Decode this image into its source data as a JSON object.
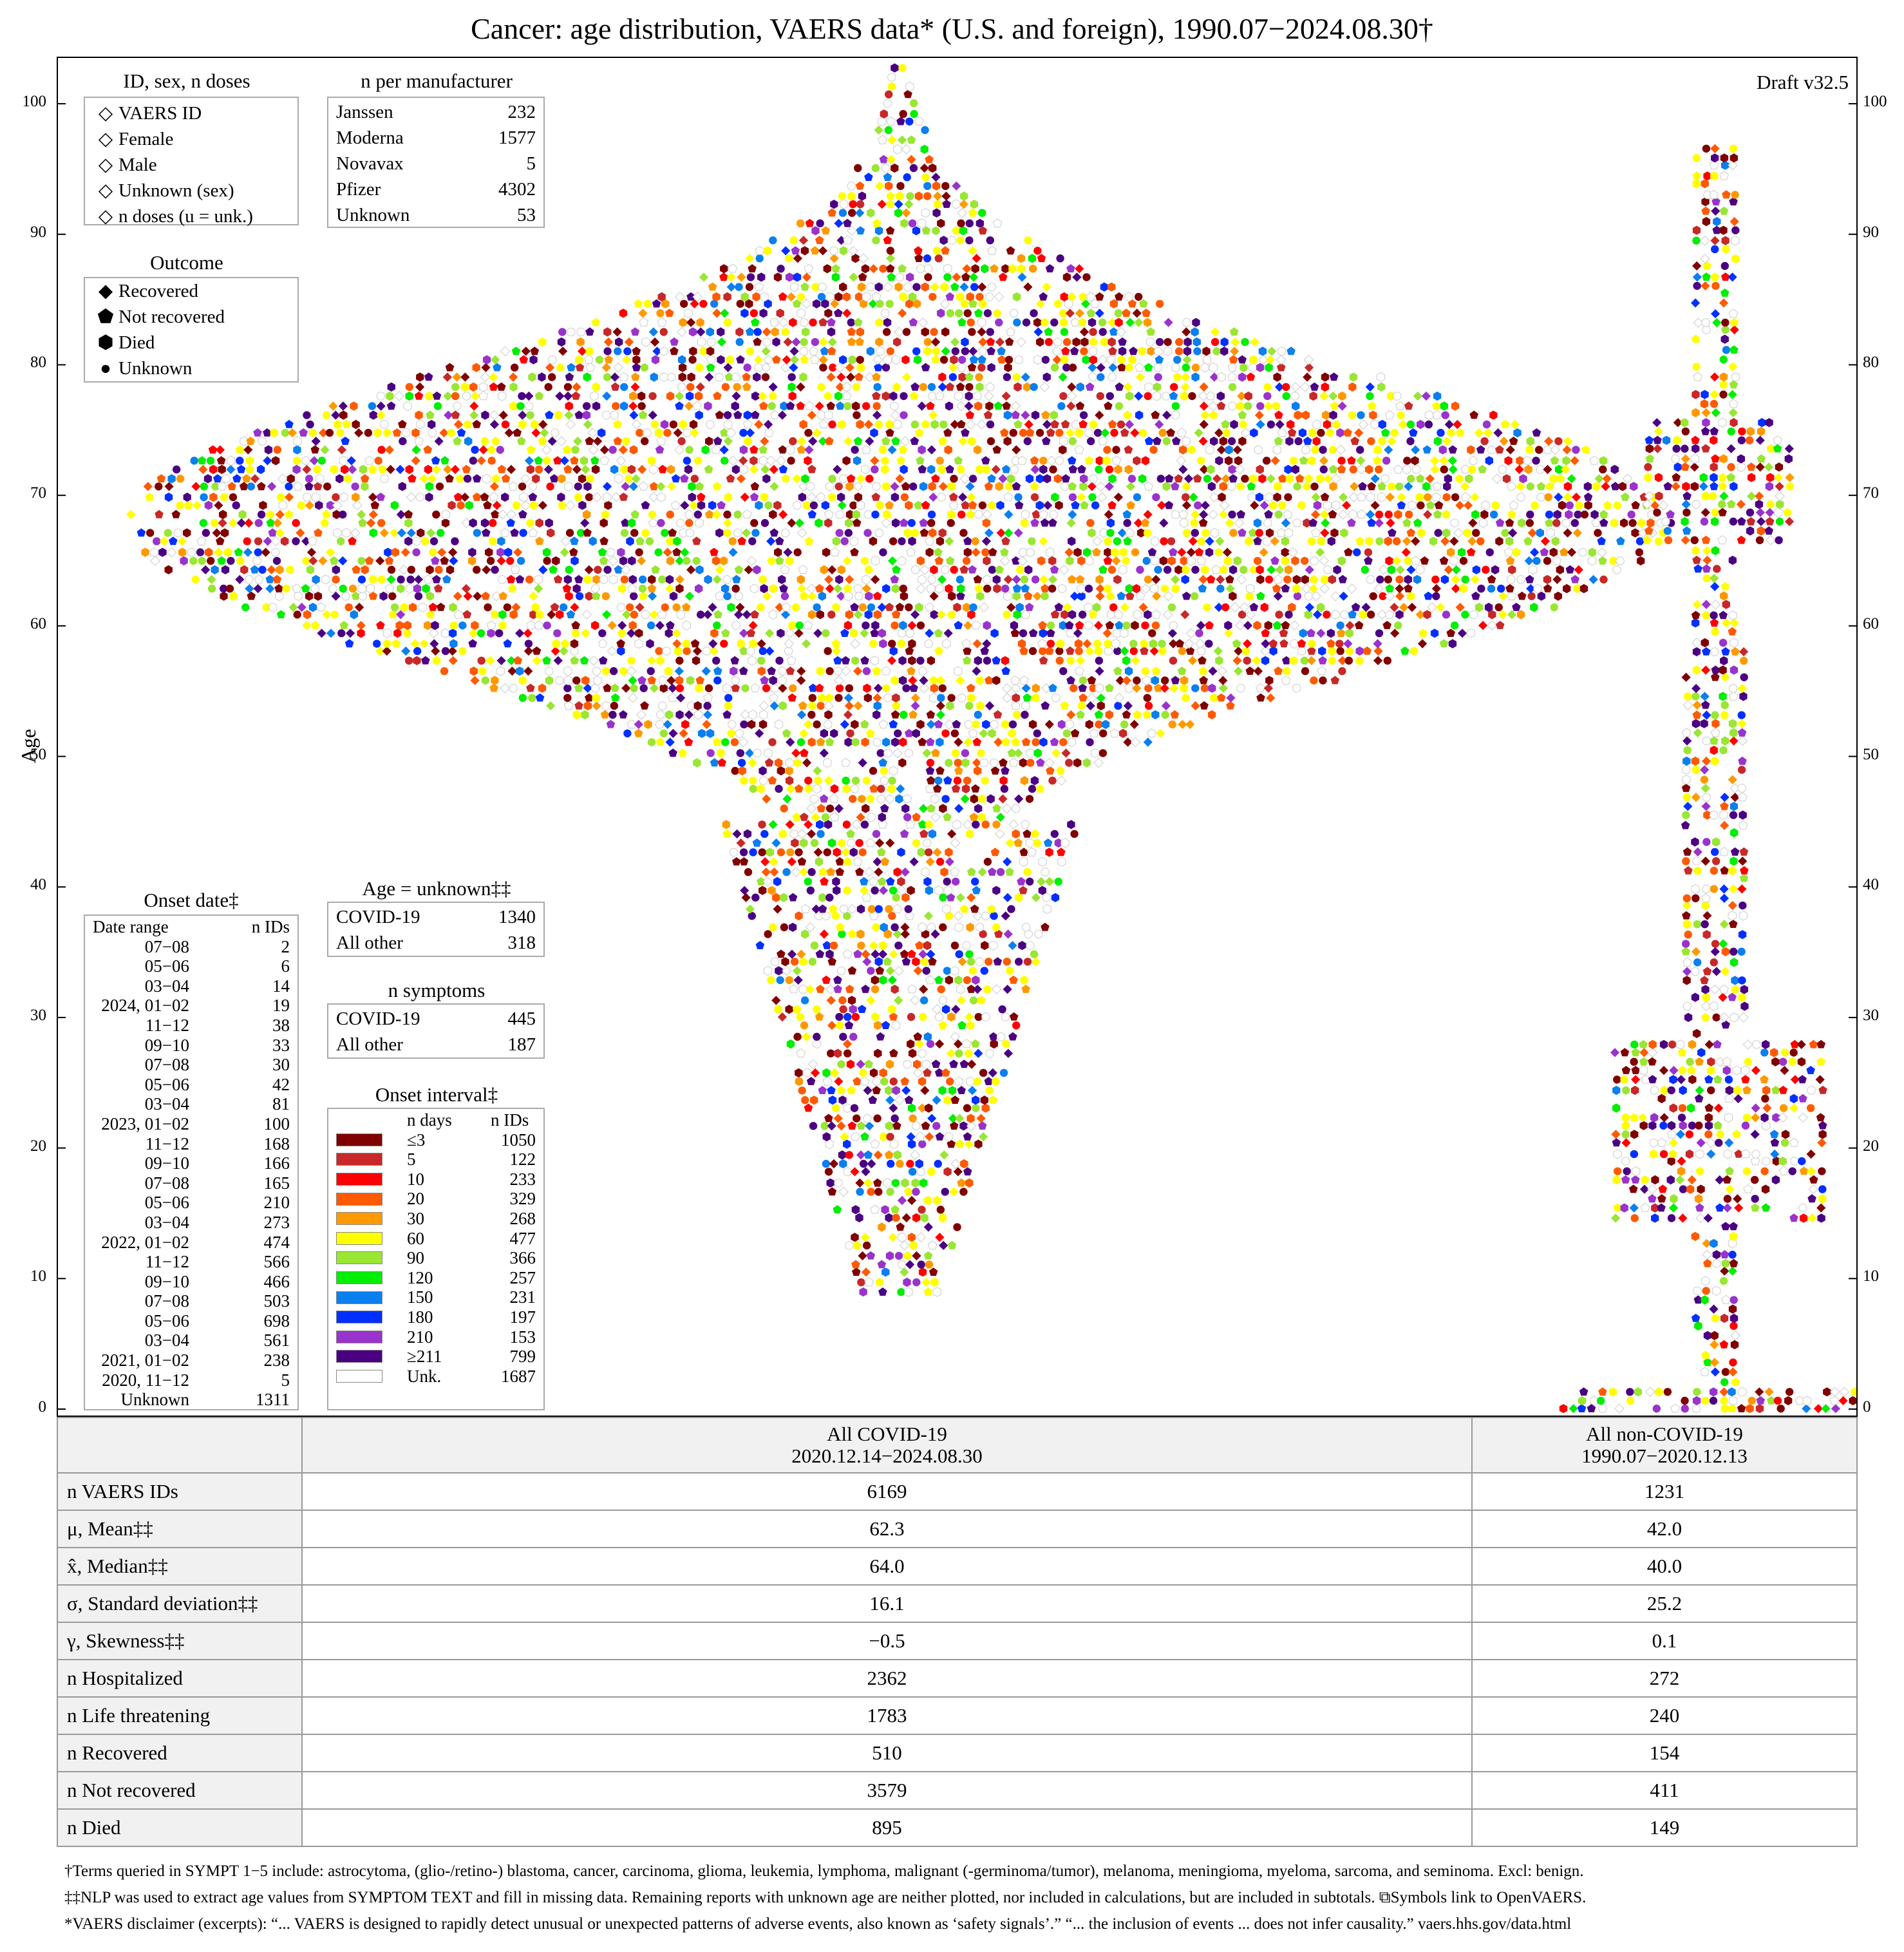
{
  "chart_data": {
    "type": "scatter",
    "title": "Cancer: age distribution, VAERS data* (U.S. and foreign), 1990.07−2024.08.30†",
    "draft": "Draft v32.5",
    "ylabel": "Age",
    "ylim": [
      0,
      104
    ],
    "yticks": [
      0,
      10,
      20,
      30,
      40,
      50,
      60,
      70,
      80,
      90,
      100
    ],
    "series": [
      {
        "name": "All COVID-19",
        "n": 6169,
        "mean": 62.3,
        "median": 64.0,
        "sd": 16.1,
        "min_age": 9,
        "max_age": 103
      },
      {
        "name": "All non-COVID-19",
        "n": 1231,
        "mean": 42.0,
        "median": 40.0,
        "sd": 25.2,
        "min_age": 0,
        "max_age": 97
      }
    ],
    "colors": [
      "#800000",
      "#c82828",
      "#ff0000",
      "#ff5a00",
      "#ff9900",
      "#ffff00",
      "#99e633",
      "#00ee00",
      "#0a7ff0",
      "#0030ff",
      "#9933cc",
      "#4b0082",
      "#ffffff"
    ]
  },
  "legend_id": {
    "title": "ID, sex, n doses",
    "items": [
      "VAERS ID",
      "Female",
      "Male",
      "Unknown (sex)",
      "n doses (u = unk.)"
    ]
  },
  "legend_outcome": {
    "title": "Outcome",
    "items": [
      "Recovered",
      "Not recovered",
      "Died",
      "Unknown"
    ]
  },
  "manufacturer": {
    "title": "n per manufacturer",
    "rows": [
      [
        "Janssen",
        "232"
      ],
      [
        "Moderna",
        "1577"
      ],
      [
        "Novavax",
        "5"
      ],
      [
        "Pfizer",
        "4302"
      ],
      [
        "Unknown",
        "53"
      ]
    ]
  },
  "age_unknown": {
    "title": "Age = unknown‡‡",
    "rows": [
      [
        "COVID-19",
        "1340"
      ],
      [
        "All other",
        "318"
      ]
    ]
  },
  "n_symptoms": {
    "title": "n symptoms",
    "rows": [
      [
        "COVID-19",
        "445"
      ],
      [
        "All other",
        "187"
      ]
    ]
  },
  "onset_date": {
    "title": "Onset date‡",
    "header": [
      "Date range",
      "n IDs"
    ],
    "rows": [
      [
        "07−08",
        "2"
      ],
      [
        "05−06",
        "6"
      ],
      [
        "03−04",
        "14"
      ],
      [
        "2024, 01−02",
        "19"
      ],
      [
        "11−12",
        "38"
      ],
      [
        "09−10",
        "33"
      ],
      [
        "07−08",
        "30"
      ],
      [
        "05−06",
        "42"
      ],
      [
        "03−04",
        "81"
      ],
      [
        "2023, 01−02",
        "100"
      ],
      [
        "11−12",
        "168"
      ],
      [
        "09−10",
        "166"
      ],
      [
        "07−08",
        "165"
      ],
      [
        "05−06",
        "210"
      ],
      [
        "03−04",
        "273"
      ],
      [
        "2022, 01−02",
        "474"
      ],
      [
        "11−12",
        "566"
      ],
      [
        "09−10",
        "466"
      ],
      [
        "07−08",
        "503"
      ],
      [
        "05−06",
        "698"
      ],
      [
        "03−04",
        "561"
      ],
      [
        "2021, 01−02",
        "238"
      ],
      [
        "2020, 11−12",
        "5"
      ],
      [
        "Unknown",
        "1311"
      ]
    ]
  },
  "onset_interval": {
    "title": "Onset interval‡",
    "header": [
      "n days",
      "n IDs"
    ],
    "rows": [
      [
        "≤3",
        "1050",
        "#800000"
      ],
      [
        "5",
        "122",
        "#c82828"
      ],
      [
        "10",
        "233",
        "#ff0000"
      ],
      [
        "20",
        "329",
        "#ff5a00"
      ],
      [
        "30",
        "268",
        "#ff9900"
      ],
      [
        "60",
        "477",
        "#ffff00"
      ],
      [
        "90",
        "366",
        "#99e633"
      ],
      [
        "120",
        "257",
        "#00ee00"
      ],
      [
        "150",
        "231",
        "#0a7ff0"
      ],
      [
        "180",
        "197",
        "#0030ff"
      ],
      [
        "210",
        "153",
        "#9933cc"
      ],
      [
        "≥211",
        "799",
        "#4b0082"
      ],
      [
        "Unk.",
        "1687",
        "#ffffff"
      ]
    ]
  },
  "stats": {
    "col1": "All COVID-19",
    "col1_range": "2020.12.14−2024.08.30",
    "col2": "All non-COVID-19",
    "col2_range": "1990.07−2020.12.13",
    "rows": [
      [
        "n VAERS IDs",
        "6169",
        "1231"
      ],
      [
        "μ, Mean‡‡",
        "62.3",
        "42.0"
      ],
      [
        "x̂, Median‡‡",
        "64.0",
        "40.0"
      ],
      [
        "σ, Standard deviation‡‡",
        "16.1",
        "25.2"
      ],
      [
        "γ, Skewness‡‡",
        "−0.5",
        "0.1"
      ],
      [
        "n Hospitalized",
        "2362",
        "272"
      ],
      [
        "n Life threatening",
        "1783",
        "240"
      ],
      [
        "n Recovered",
        "510",
        "154"
      ],
      [
        "n Not recovered",
        "3579",
        "411"
      ],
      [
        "n Died",
        "895",
        "149"
      ]
    ]
  },
  "footer": {
    "line1": "†Terms queried in SYMPT 1−5 include: astrocytoma, (glio-/retino-) blastoma, cancer, carcinoma, glioma, leukemia, lymphoma, malignant (-germinoma/tumor), melanoma, meningioma, myeloma, sarcoma, and seminoma. Excl: benign.",
    "line2": "‡‡NLP was used to extract age values from SYMPTOM TEXT and fill in missing data. Remaining reports with unknown age are neither plotted, nor included in calculations, but are included in subtotals.  ⧉Symbols link to OpenVAERS.",
    "line3": "*VAERS disclaimer (excerpts): “... VAERS is designed to rapidly detect unusual or unexpected patterns of adverse events, also known as ‘safety signals’.” “... the inclusion of events ... does not infer causality.”    vaers.hhs.gov/data.html"
  }
}
